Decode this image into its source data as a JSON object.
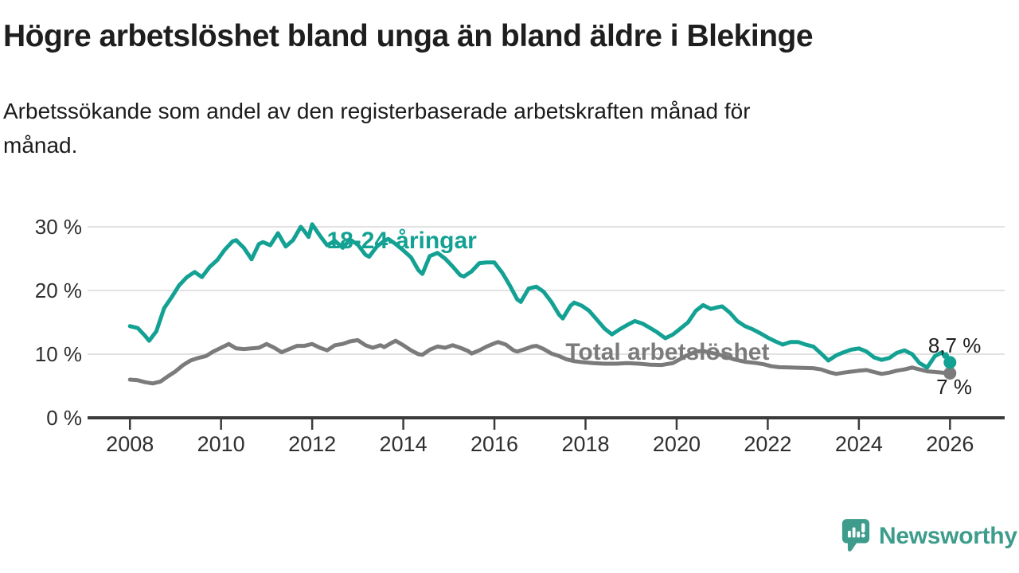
{
  "header": {
    "title": "Högre arbetslöshet bland unga än bland äldre i Blekinge",
    "subtitle_lines": {
      "0": "Arbetssökande som andel av den registerbaserade arbetskraften månad för",
      "1": "månad."
    }
  },
  "branding": {
    "name": "Newsworthy",
    "icon": "speech-bubble-bar-chart-icon",
    "color": "#3d9c8b"
  },
  "colors": {
    "youth_line": "#13a193",
    "total_line": "#7b7b7b",
    "grid": "#d9d9d9",
    "axis": "#3b3b3b",
    "tick_text": "#2f2f2f",
    "annotation_text": "#1e1e1e"
  },
  "chart_data": {
    "type": "line",
    "title": "Högre arbetslöshet bland unga än bland äldre i Blekinge",
    "xlabel": "",
    "ylabel": "Arbetssökande som andel av den registerbaserade arbetskraften (%)",
    "x_unit": "year, monthly observations",
    "xlim": [
      2007.07,
      2027.2
    ],
    "ylim": [
      0,
      30
    ],
    "grid": "horizontal",
    "legend_position": "inline-labels",
    "y_ticks": [
      {
        "value": 0,
        "label": "0 %"
      },
      {
        "value": 10,
        "label": "10 %"
      },
      {
        "value": 20,
        "label": "20 %"
      },
      {
        "value": 30,
        "label": "30 %"
      }
    ],
    "x_ticks": [
      {
        "value": 2008,
        "label": "2008"
      },
      {
        "value": 2010,
        "label": "2010"
      },
      {
        "value": 2012,
        "label": "2012"
      },
      {
        "value": 2014,
        "label": "2014"
      },
      {
        "value": 2016,
        "label": "2016"
      },
      {
        "value": 2018,
        "label": "2018"
      },
      {
        "value": 2020,
        "label": "2020"
      },
      {
        "value": 2022,
        "label": "2022"
      },
      {
        "value": 2024,
        "label": "2024"
      },
      {
        "value": 2026,
        "label": "2026"
      }
    ],
    "series": [
      {
        "id": "total",
        "name": "Total arbetslöshet",
        "color": "#7b7b7b",
        "end_value_label": "7 %",
        "label_at": [
          2017.56,
          9.13
        ],
        "points": [
          [
            2008.0,
            6.0
          ],
          [
            2008.17,
            5.9
          ],
          [
            2008.33,
            5.6
          ],
          [
            2008.5,
            5.4
          ],
          [
            2008.67,
            5.7
          ],
          [
            2008.83,
            6.5
          ],
          [
            2009.0,
            7.3
          ],
          [
            2009.17,
            8.3
          ],
          [
            2009.33,
            9.0
          ],
          [
            2009.5,
            9.4
          ],
          [
            2009.67,
            9.7
          ],
          [
            2009.83,
            10.4
          ],
          [
            2010.0,
            11.0
          ],
          [
            2010.17,
            11.6
          ],
          [
            2010.33,
            10.9
          ],
          [
            2010.5,
            10.8
          ],
          [
            2010.67,
            10.9
          ],
          [
            2010.83,
            11.0
          ],
          [
            2011.0,
            11.6
          ],
          [
            2011.17,
            11.0
          ],
          [
            2011.33,
            10.3
          ],
          [
            2011.5,
            10.8
          ],
          [
            2011.67,
            11.3
          ],
          [
            2011.83,
            11.3
          ],
          [
            2012.0,
            11.6
          ],
          [
            2012.17,
            11.0
          ],
          [
            2012.33,
            10.6
          ],
          [
            2012.5,
            11.4
          ],
          [
            2012.67,
            11.6
          ],
          [
            2012.83,
            12.0
          ],
          [
            2013.0,
            12.2
          ],
          [
            2013.17,
            11.4
          ],
          [
            2013.33,
            11.0
          ],
          [
            2013.5,
            11.4
          ],
          [
            2013.58,
            11.1
          ],
          [
            2013.75,
            11.8
          ],
          [
            2013.83,
            12.1
          ],
          [
            2014.0,
            11.4
          ],
          [
            2014.17,
            10.6
          ],
          [
            2014.33,
            10.0
          ],
          [
            2014.42,
            9.9
          ],
          [
            2014.58,
            10.7
          ],
          [
            2014.75,
            11.2
          ],
          [
            2014.92,
            11.0
          ],
          [
            2015.08,
            11.4
          ],
          [
            2015.25,
            11.0
          ],
          [
            2015.42,
            10.5
          ],
          [
            2015.5,
            10.1
          ],
          [
            2015.67,
            10.6
          ],
          [
            2015.83,
            11.2
          ],
          [
            2016.0,
            11.7
          ],
          [
            2016.08,
            11.9
          ],
          [
            2016.25,
            11.5
          ],
          [
            2016.42,
            10.6
          ],
          [
            2016.5,
            10.4
          ],
          [
            2016.67,
            10.8
          ],
          [
            2016.83,
            11.2
          ],
          [
            2016.92,
            11.3
          ],
          [
            2017.08,
            10.8
          ],
          [
            2017.25,
            10.1
          ],
          [
            2017.42,
            9.7
          ],
          [
            2017.58,
            9.2
          ],
          [
            2017.75,
            8.9
          ],
          [
            2017.92,
            8.75
          ],
          [
            2018.17,
            8.6
          ],
          [
            2018.42,
            8.5
          ],
          [
            2018.67,
            8.5
          ],
          [
            2018.92,
            8.6
          ],
          [
            2019.17,
            8.5
          ],
          [
            2019.42,
            8.35
          ],
          [
            2019.67,
            8.3
          ],
          [
            2019.92,
            8.6
          ],
          [
            2020.17,
            9.6
          ],
          [
            2020.42,
            10.4
          ],
          [
            2020.58,
            10.5
          ],
          [
            2020.83,
            10.1
          ],
          [
            2021.0,
            9.8
          ],
          [
            2021.25,
            9.2
          ],
          [
            2021.5,
            8.8
          ],
          [
            2021.75,
            8.6
          ],
          [
            2021.92,
            8.4
          ],
          [
            2022.08,
            8.1
          ],
          [
            2022.25,
            7.95
          ],
          [
            2022.5,
            7.9
          ],
          [
            2022.75,
            7.85
          ],
          [
            2023.0,
            7.8
          ],
          [
            2023.17,
            7.6
          ],
          [
            2023.33,
            7.2
          ],
          [
            2023.5,
            6.9
          ],
          [
            2023.67,
            7.1
          ],
          [
            2023.83,
            7.25
          ],
          [
            2024.0,
            7.4
          ],
          [
            2024.17,
            7.5
          ],
          [
            2024.33,
            7.2
          ],
          [
            2024.5,
            6.9
          ],
          [
            2024.67,
            7.1
          ],
          [
            2024.83,
            7.4
          ],
          [
            2025.0,
            7.6
          ],
          [
            2025.17,
            7.9
          ],
          [
            2025.33,
            7.6
          ],
          [
            2025.5,
            7.3
          ],
          [
            2025.67,
            7.2
          ],
          [
            2025.83,
            7.1
          ],
          [
            2026.0,
            7.0
          ]
        ]
      },
      {
        "id": "youth",
        "name": "18-24-åringar",
        "color": "#13a193",
        "end_value_label": "8,7 %",
        "label_at": [
          2012.32,
          26.63
        ],
        "points": [
          [
            2008.0,
            14.4
          ],
          [
            2008.17,
            14.1
          ],
          [
            2008.33,
            12.9
          ],
          [
            2008.42,
            12.1
          ],
          [
            2008.58,
            13.6
          ],
          [
            2008.75,
            17.2
          ],
          [
            2008.92,
            19.0
          ],
          [
            2009.08,
            20.8
          ],
          [
            2009.25,
            22.1
          ],
          [
            2009.42,
            22.9
          ],
          [
            2009.58,
            22.1
          ],
          [
            2009.75,
            23.7
          ],
          [
            2009.92,
            24.8
          ],
          [
            2010.08,
            26.4
          ],
          [
            2010.25,
            27.7
          ],
          [
            2010.33,
            27.9
          ],
          [
            2010.5,
            26.7
          ],
          [
            2010.67,
            24.9
          ],
          [
            2010.83,
            27.3
          ],
          [
            2010.92,
            27.6
          ],
          [
            2011.08,
            27.1
          ],
          [
            2011.25,
            29.0
          ],
          [
            2011.42,
            26.9
          ],
          [
            2011.58,
            27.9
          ],
          [
            2011.75,
            30.0
          ],
          [
            2011.83,
            29.3
          ],
          [
            2011.92,
            28.4
          ],
          [
            2012.0,
            30.4
          ],
          [
            2012.17,
            28.6
          ],
          [
            2012.33,
            27.1
          ],
          [
            2012.5,
            27.8
          ],
          [
            2012.67,
            26.7
          ],
          [
            2012.83,
            28.0
          ],
          [
            2013.0,
            27.2
          ],
          [
            2013.17,
            25.6
          ],
          [
            2013.25,
            25.3
          ],
          [
            2013.42,
            26.9
          ],
          [
            2013.58,
            27.8
          ],
          [
            2013.67,
            28.1
          ],
          [
            2013.83,
            27.3
          ],
          [
            2014.0,
            26.3
          ],
          [
            2014.17,
            25.2
          ],
          [
            2014.33,
            23.2
          ],
          [
            2014.42,
            22.6
          ],
          [
            2014.58,
            25.4
          ],
          [
            2014.75,
            25.9
          ],
          [
            2014.92,
            25.0
          ],
          [
            2015.08,
            23.8
          ],
          [
            2015.25,
            22.4
          ],
          [
            2015.33,
            22.2
          ],
          [
            2015.5,
            23.0
          ],
          [
            2015.67,
            24.3
          ],
          [
            2015.83,
            24.4
          ],
          [
            2016.0,
            24.4
          ],
          [
            2016.17,
            22.8
          ],
          [
            2016.33,
            20.9
          ],
          [
            2016.5,
            18.6
          ],
          [
            2016.58,
            18.2
          ],
          [
            2016.75,
            20.3
          ],
          [
            2016.92,
            20.6
          ],
          [
            2017.08,
            19.8
          ],
          [
            2017.25,
            18.2
          ],
          [
            2017.42,
            16.2
          ],
          [
            2017.5,
            15.6
          ],
          [
            2017.67,
            17.6
          ],
          [
            2017.75,
            18.1
          ],
          [
            2017.92,
            17.6
          ],
          [
            2018.08,
            16.8
          ],
          [
            2018.25,
            15.4
          ],
          [
            2018.42,
            14.0
          ],
          [
            2018.58,
            13.1
          ],
          [
            2018.75,
            13.9
          ],
          [
            2018.92,
            14.6
          ],
          [
            2019.08,
            15.2
          ],
          [
            2019.25,
            14.8
          ],
          [
            2019.42,
            14.1
          ],
          [
            2019.58,
            13.4
          ],
          [
            2019.75,
            12.5
          ],
          [
            2019.92,
            13.1
          ],
          [
            2020.08,
            14.0
          ],
          [
            2020.25,
            15.0
          ],
          [
            2020.42,
            16.8
          ],
          [
            2020.58,
            17.7
          ],
          [
            2020.75,
            17.1
          ],
          [
            2020.92,
            17.4
          ],
          [
            2021.0,
            17.5
          ],
          [
            2021.17,
            16.5
          ],
          [
            2021.33,
            15.2
          ],
          [
            2021.5,
            14.4
          ],
          [
            2021.67,
            13.9
          ],
          [
            2021.83,
            13.3
          ],
          [
            2022.0,
            12.6
          ],
          [
            2022.17,
            12.0
          ],
          [
            2022.33,
            11.5
          ],
          [
            2022.5,
            11.9
          ],
          [
            2022.67,
            11.9
          ],
          [
            2022.83,
            11.5
          ],
          [
            2023.0,
            11.2
          ],
          [
            2023.17,
            10.1
          ],
          [
            2023.33,
            9.0
          ],
          [
            2023.5,
            9.8
          ],
          [
            2023.67,
            10.3
          ],
          [
            2023.83,
            10.7
          ],
          [
            2024.0,
            10.9
          ],
          [
            2024.17,
            10.4
          ],
          [
            2024.33,
            9.5
          ],
          [
            2024.5,
            9.1
          ],
          [
            2024.67,
            9.4
          ],
          [
            2024.83,
            10.2
          ],
          [
            2025.0,
            10.6
          ],
          [
            2025.17,
            10.0
          ],
          [
            2025.33,
            8.6
          ],
          [
            2025.5,
            7.9
          ],
          [
            2025.67,
            9.7
          ],
          [
            2025.83,
            10.3
          ],
          [
            2025.88,
            9.6
          ],
          [
            2025.92,
            10.0
          ],
          [
            2026.0,
            8.7
          ]
        ]
      }
    ],
    "annotations": [
      {
        "text": "8,7 %",
        "at": [
          2025.52,
          10.25
        ]
      },
      {
        "text": "7 %",
        "at": [
          2025.7,
          3.75
        ]
      }
    ]
  }
}
